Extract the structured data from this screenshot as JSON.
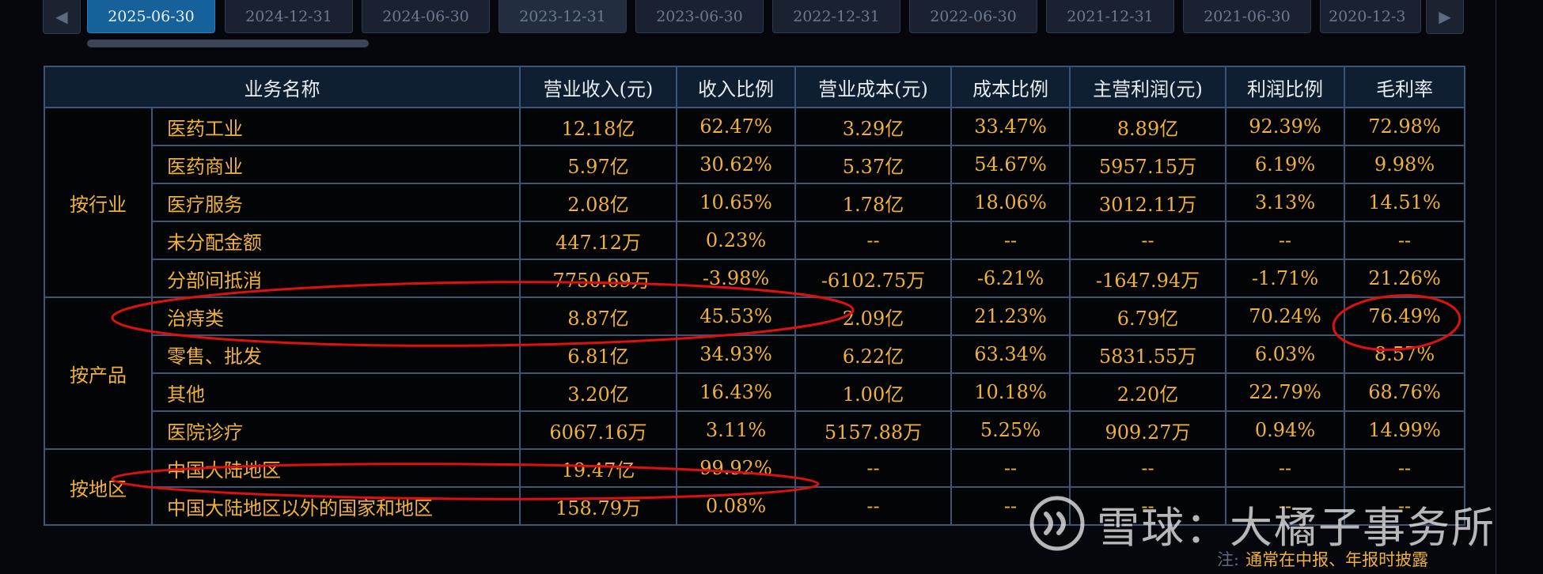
{
  "tabs": {
    "dates": [
      "2025-06-30",
      "2024-12-31",
      "2024-06-30",
      "2023-12-31",
      "2023-06-30",
      "2022-12-31",
      "2022-06-30",
      "2021-12-31",
      "2021-06-30",
      "2020-12-3"
    ],
    "active_index": 0,
    "prev_icon": "chevron-left-icon",
    "next_icon": "chevron-right-icon"
  },
  "table": {
    "headers": [
      "业务名称",
      "营业收入(元)",
      "收入比例",
      "营业成本(元)",
      "成本比例",
      "主营利润(元)",
      "利润比例",
      "毛利率"
    ],
    "groups": [
      {
        "label": "按行业",
        "rows": [
          [
            "医药工业",
            "12.18亿",
            "62.47%",
            "3.29亿",
            "33.47%",
            "8.89亿",
            "92.39%",
            "72.98%"
          ],
          [
            "医药商业",
            "5.97亿",
            "30.62%",
            "5.37亿",
            "54.67%",
            "5957.15万",
            "6.19%",
            "9.98%"
          ],
          [
            "医疗服务",
            "2.08亿",
            "10.65%",
            "1.78亿",
            "18.06%",
            "3012.11万",
            "3.13%",
            "14.51%"
          ],
          [
            "未分配金额",
            "447.12万",
            "0.23%",
            "--",
            "--",
            "--",
            "--",
            "--"
          ],
          [
            "分部间抵消",
            "-7750.69万",
            "-3.98%",
            "-6102.75万",
            "-6.21%",
            "-1647.94万",
            "-1.71%",
            "21.26%"
          ]
        ]
      },
      {
        "label": "按产品",
        "rows": [
          [
            "治痔类",
            "8.87亿",
            "45.53%",
            "2.09亿",
            "21.23%",
            "6.79亿",
            "70.24%",
            "76.49%"
          ],
          [
            "零售、批发",
            "6.81亿",
            "34.93%",
            "6.22亿",
            "63.34%",
            "5831.55万",
            "6.03%",
            "8.57%"
          ],
          [
            "其他",
            "3.20亿",
            "16.43%",
            "1.00亿",
            "10.18%",
            "2.20亿",
            "22.79%",
            "68.76%"
          ],
          [
            "医院诊疗",
            "6067.16万",
            "3.11%",
            "5157.88万",
            "5.25%",
            "909.27万",
            "0.94%",
            "14.99%"
          ]
        ]
      },
      {
        "label": "按地区",
        "rows": [
          [
            "中国大陆地区",
            "19.47亿",
            "99.92%",
            "--",
            "--",
            "--",
            "--",
            "--"
          ],
          [
            "中国大陆地区以外的国家和地区",
            "158.79万",
            "0.08%",
            "--",
            "--",
            "--",
            "--",
            "--"
          ]
        ]
      }
    ]
  },
  "watermark": {
    "icon": "xueqiu-logo-icon",
    "text": "雪球：大橘子事务所"
  },
  "note": {
    "label": "注:",
    "text": "通常在中报、年报时披露"
  },
  "colors": {
    "value": "#f0b13a",
    "header_bg": "#0f1e31",
    "grid": "#3a5676",
    "active_tab": "#17619a",
    "annotation": "#e01010"
  }
}
